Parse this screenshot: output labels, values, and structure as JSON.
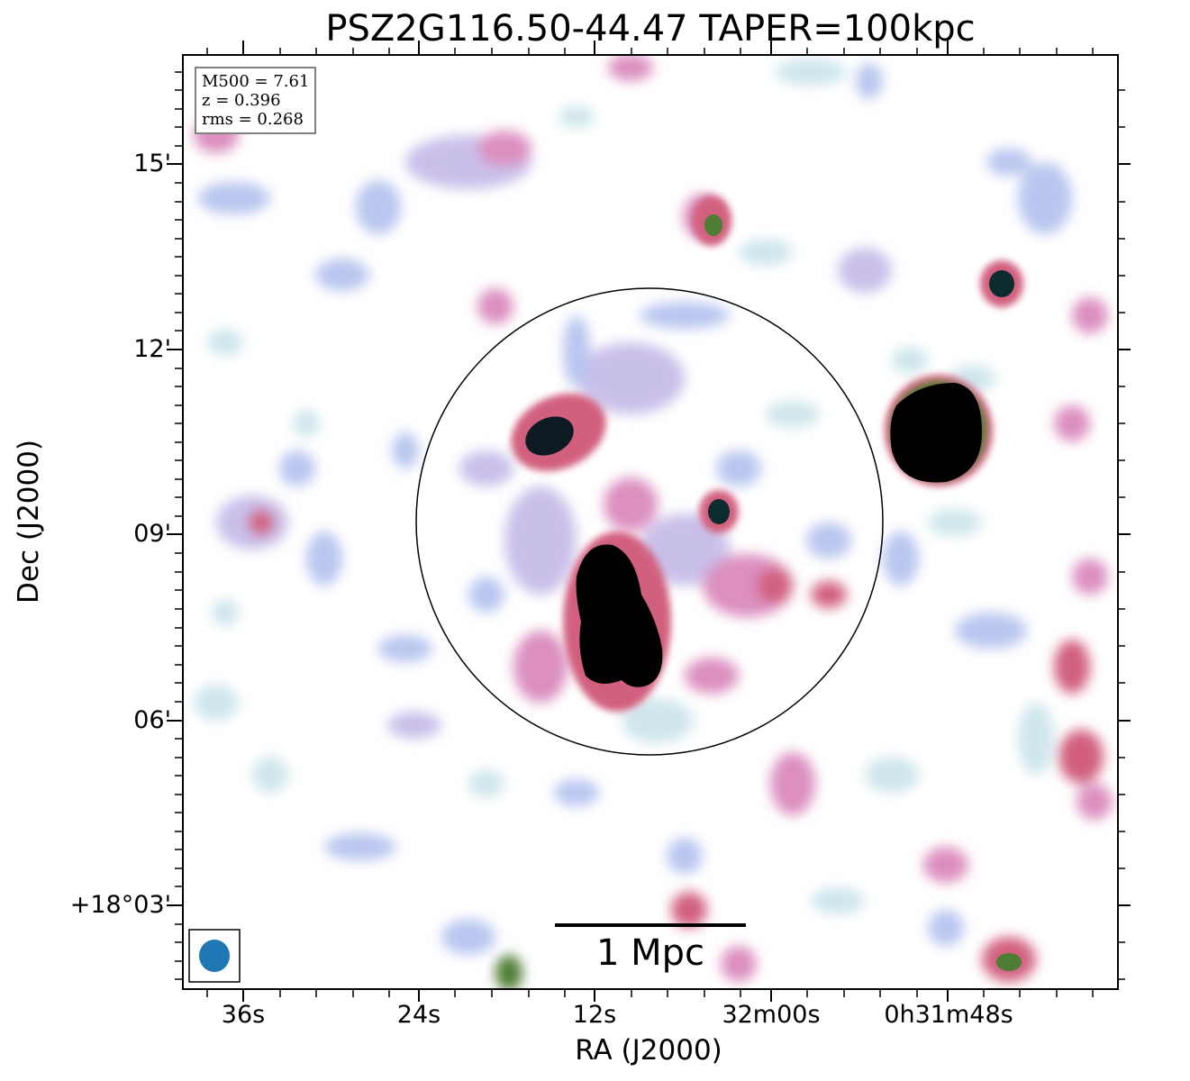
{
  "title": "PSZ2G116.50-44.47 TAPER=100kpc",
  "axes": {
    "xlabel": "RA (J2000)",
    "ylabel": "Dec (J2000)",
    "xticks": [
      "36s",
      "24s",
      "12s",
      "32m00s",
      "0h31m48s"
    ],
    "yticks": [
      "15'",
      "12'",
      "09'",
      "06'",
      "+18°03'"
    ]
  },
  "info": {
    "mass": "M500 = 7.61",
    "redshift": "z = 0.396",
    "rms": "rms = 0.268"
  },
  "scalebar": {
    "label": "1 Mpc"
  },
  "colors": {
    "faint": "#cfe6ec",
    "low": "#b9c6ef",
    "mid": "#dc8fc0",
    "high": "#d1607f",
    "green": "#4f7d34",
    "dark": "#000000",
    "beam": "#1f77b4"
  }
}
